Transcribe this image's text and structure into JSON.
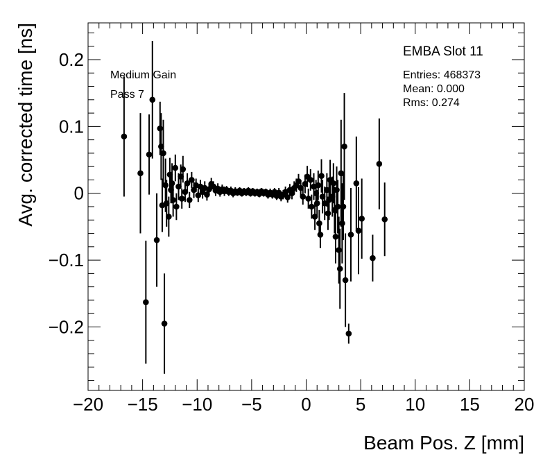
{
  "chart_data": {
    "type": "scatter",
    "xlabel": "Beam Pos. Z [mm]",
    "ylabel": "Avg. corrected time [ns]",
    "xlim": [
      -20,
      20
    ],
    "ylim": [
      -0.295,
      0.255
    ],
    "xticks": [
      -20,
      -15,
      -10,
      -5,
      0,
      5,
      10,
      15,
      20
    ],
    "xtick_labels": [
      "−20",
      "−15",
      "−10",
      "−5",
      "0",
      "5",
      "10",
      "15",
      "20"
    ],
    "yticks": [
      -0.2,
      -0.1,
      0,
      0.1,
      0.2
    ],
    "ytick_labels": [
      "−0.2",
      "−0.1",
      "0",
      "0.1",
      "0.2"
    ],
    "grid": false,
    "legend": "none",
    "marker_color": "#000000",
    "points": [
      {
        "x": -16.7,
        "y": 0.085,
        "err": 0.09
      },
      {
        "x": -15.2,
        "y": 0.03,
        "err": 0.09
      },
      {
        "x": -14.7,
        "y": -0.163,
        "err": 0.092
      },
      {
        "x": -14.4,
        "y": 0.058,
        "err": 0.06
      },
      {
        "x": -14.1,
        "y": 0.14,
        "err": 0.088
      },
      {
        "x": -13.7,
        "y": -0.07,
        "err": 0.07
      },
      {
        "x": -13.4,
        "y": 0.097,
        "err": 0.04
      },
      {
        "x": -13.3,
        "y": 0.07,
        "err": 0.05
      },
      {
        "x": -13.2,
        "y": -0.018,
        "err": 0.04
      },
      {
        "x": -13.1,
        "y": 0.06,
        "err": 0.05
      },
      {
        "x": -13.0,
        "y": -0.195,
        "err": 0.075
      },
      {
        "x": -12.9,
        "y": 0.012,
        "err": 0.04
      },
      {
        "x": -12.8,
        "y": -0.015,
        "err": 0.035
      },
      {
        "x": -12.6,
        "y": -0.035,
        "err": 0.03
      },
      {
        "x": -12.5,
        "y": 0.028,
        "err": 0.025
      },
      {
        "x": -12.4,
        "y": 0.005,
        "err": 0.02
      },
      {
        "x": -12.3,
        "y": 0.015,
        "err": 0.03
      },
      {
        "x": -12.2,
        "y": -0.01,
        "err": 0.025
      },
      {
        "x": -12.0,
        "y": 0.038,
        "err": 0.02
      },
      {
        "x": -11.9,
        "y": -0.02,
        "err": 0.02
      },
      {
        "x": -11.7,
        "y": 0.01,
        "err": 0.02
      },
      {
        "x": -11.5,
        "y": 0.025,
        "err": 0.018
      },
      {
        "x": -11.4,
        "y": -0.008,
        "err": 0.015
      },
      {
        "x": -11.3,
        "y": 0.036,
        "err": 0.02
      },
      {
        "x": -11.1,
        "y": 0.002,
        "err": 0.015
      },
      {
        "x": -10.9,
        "y": 0.015,
        "err": 0.015
      },
      {
        "x": -10.7,
        "y": -0.01,
        "err": 0.012
      },
      {
        "x": -10.5,
        "y": 0.02,
        "err": 0.012
      },
      {
        "x": -10.3,
        "y": 0.005,
        "err": 0.012
      },
      {
        "x": -10.1,
        "y": 0.012,
        "err": 0.01
      },
      {
        "x": -9.9,
        "y": -0.003,
        "err": 0.01
      },
      {
        "x": -9.7,
        "y": 0.01,
        "err": 0.01
      },
      {
        "x": -9.5,
        "y": 0.002,
        "err": 0.01
      },
      {
        "x": -9.3,
        "y": 0.008,
        "err": 0.01
      },
      {
        "x": -9.1,
        "y": -0.002,
        "err": 0.009
      },
      {
        "x": -8.9,
        "y": 0.006,
        "err": 0.009
      },
      {
        "x": -8.7,
        "y": 0.014,
        "err": 0.009
      },
      {
        "x": -8.5,
        "y": 0.01,
        "err": 0.008
      },
      {
        "x": -8.3,
        "y": 0.004,
        "err": 0.008
      },
      {
        "x": -8.1,
        "y": 0.007,
        "err": 0.008
      },
      {
        "x": -7.9,
        "y": 0.002,
        "err": 0.007
      },
      {
        "x": -7.7,
        "y": 0.006,
        "err": 0.007
      },
      {
        "x": -7.5,
        "y": 0.003,
        "err": 0.007
      },
      {
        "x": -7.3,
        "y": 0.005,
        "err": 0.006
      },
      {
        "x": -7.1,
        "y": 0.002,
        "err": 0.006
      },
      {
        "x": -6.9,
        "y": 0.004,
        "err": 0.006
      },
      {
        "x": -6.7,
        "y": 0.0,
        "err": 0.006
      },
      {
        "x": -6.5,
        "y": 0.003,
        "err": 0.006
      },
      {
        "x": -6.3,
        "y": 0.001,
        "err": 0.005
      },
      {
        "x": -6.1,
        "y": 0.004,
        "err": 0.005
      },
      {
        "x": -5.9,
        "y": 0.0,
        "err": 0.005
      },
      {
        "x": -5.7,
        "y": 0.003,
        "err": 0.005
      },
      {
        "x": -5.5,
        "y": 0.001,
        "err": 0.005
      },
      {
        "x": -5.3,
        "y": 0.004,
        "err": 0.005
      },
      {
        "x": -5.1,
        "y": 0.0,
        "err": 0.005
      },
      {
        "x": -4.9,
        "y": 0.003,
        "err": 0.005
      },
      {
        "x": -4.7,
        "y": 0.0,
        "err": 0.005
      },
      {
        "x": -4.5,
        "y": 0.002,
        "err": 0.005
      },
      {
        "x": -4.3,
        "y": -0.001,
        "err": 0.005
      },
      {
        "x": -4.1,
        "y": 0.003,
        "err": 0.005
      },
      {
        "x": -3.9,
        "y": 0.0,
        "err": 0.005
      },
      {
        "x": -3.7,
        "y": 0.002,
        "err": 0.005
      },
      {
        "x": -3.5,
        "y": -0.002,
        "err": 0.006
      },
      {
        "x": -3.3,
        "y": 0.001,
        "err": 0.006
      },
      {
        "x": -3.1,
        "y": -0.002,
        "err": 0.006
      },
      {
        "x": -2.9,
        "y": 0.002,
        "err": 0.006
      },
      {
        "x": -2.7,
        "y": -0.004,
        "err": 0.006
      },
      {
        "x": -2.5,
        "y": 0.001,
        "err": 0.007
      },
      {
        "x": -2.3,
        "y": -0.005,
        "err": 0.007
      },
      {
        "x": -2.1,
        "y": -0.002,
        "err": 0.007
      },
      {
        "x": -1.9,
        "y": 0.002,
        "err": 0.008
      },
      {
        "x": -1.7,
        "y": -0.006,
        "err": 0.008
      },
      {
        "x": -1.5,
        "y": 0.005,
        "err": 0.009
      },
      {
        "x": -1.3,
        "y": 0.0,
        "err": 0.009
      },
      {
        "x": -1.1,
        "y": 0.008,
        "err": 0.01
      },
      {
        "x": -0.9,
        "y": 0.012,
        "err": 0.01
      },
      {
        "x": -0.7,
        "y": 0.018,
        "err": 0.011
      },
      {
        "x": -0.5,
        "y": 0.008,
        "err": 0.012
      },
      {
        "x": -0.3,
        "y": -0.005,
        "err": 0.012
      },
      {
        "x": -0.1,
        "y": 0.014,
        "err": 0.014
      },
      {
        "x": 0.1,
        "y": 0.025,
        "err": 0.016
      },
      {
        "x": 0.2,
        "y": -0.008,
        "err": 0.015
      },
      {
        "x": 0.4,
        "y": 0.02,
        "err": 0.016
      },
      {
        "x": 0.5,
        "y": -0.02,
        "err": 0.018
      },
      {
        "x": 0.7,
        "y": 0.01,
        "err": 0.02
      },
      {
        "x": 0.8,
        "y": -0.035,
        "err": 0.02
      },
      {
        "x": 0.9,
        "y": 0.0,
        "err": 0.02
      },
      {
        "x": 1.0,
        "y": -0.015,
        "err": 0.02
      },
      {
        "x": 1.1,
        "y": 0.012,
        "err": 0.022
      },
      {
        "x": 1.2,
        "y": -0.045,
        "err": 0.02
      },
      {
        "x": 1.3,
        "y": -0.062,
        "err": 0.02
      },
      {
        "x": 1.4,
        "y": 0.026,
        "err": 0.025
      },
      {
        "x": 1.5,
        "y": -0.005,
        "err": 0.025
      },
      {
        "x": 1.7,
        "y": -0.015,
        "err": 0.025
      },
      {
        "x": 1.9,
        "y": 0.005,
        "err": 0.025
      },
      {
        "x": 2.0,
        "y": -0.03,
        "err": 0.025
      },
      {
        "x": 2.1,
        "y": -0.01,
        "err": 0.03
      },
      {
        "x": 2.2,
        "y": 0.02,
        "err": 0.03
      },
      {
        "x": 2.4,
        "y": -0.005,
        "err": 0.03
      },
      {
        "x": 2.5,
        "y": 0.015,
        "err": 0.03
      },
      {
        "x": 2.6,
        "y": -0.025,
        "err": 0.035
      },
      {
        "x": 2.7,
        "y": -0.065,
        "err": 0.04
      },
      {
        "x": 2.8,
        "y": 0.005,
        "err": 0.035
      },
      {
        "x": 2.9,
        "y": -0.02,
        "err": 0.04
      },
      {
        "x": 3.0,
        "y": -0.085,
        "err": 0.05
      },
      {
        "x": 3.1,
        "y": -0.113,
        "err": 0.06
      },
      {
        "x": 3.2,
        "y": 0.03,
        "err": 0.08
      },
      {
        "x": 3.3,
        "y": -0.045,
        "err": 0.06
      },
      {
        "x": 3.4,
        "y": -0.02,
        "err": 0.05
      },
      {
        "x": 3.5,
        "y": 0.07,
        "err": 0.08
      },
      {
        "x": 3.6,
        "y": -0.13,
        "err": 0.07
      },
      {
        "x": 3.9,
        "y": -0.21,
        "err": 0.015
      },
      {
        "x": 4.1,
        "y": -0.062,
        "err": 0.07
      },
      {
        "x": 4.6,
        "y": 0.015,
        "err": 0.07
      },
      {
        "x": 4.8,
        "y": -0.056,
        "err": 0.065
      },
      {
        "x": 5.1,
        "y": -0.038,
        "err": 0.06
      },
      {
        "x": 6.1,
        "y": -0.097,
        "err": 0.035
      },
      {
        "x": 6.7,
        "y": 0.044,
        "err": 0.068
      },
      {
        "x": 7.2,
        "y": -0.039,
        "err": 0.055
      }
    ]
  },
  "stats_box": {
    "title": "EMBA Slot 11",
    "entries": "Entries: 468373",
    "mean": "Mean: 0.000",
    "rms": "Rms: 0.274"
  },
  "annotations": {
    "line1": "Medium Gain",
    "line2": "Pass 7"
  }
}
